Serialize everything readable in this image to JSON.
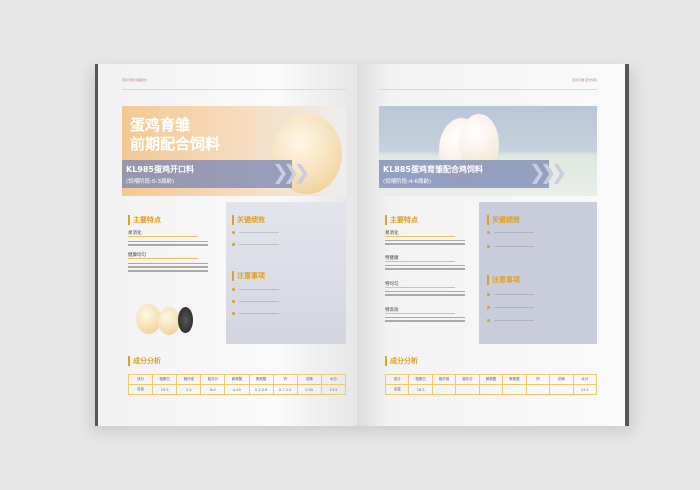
{
  "left": {
    "header": "蛋鸡育雏 前期配合",
    "title_line1": "蛋鸡育雏",
    "title_line2": "前期配合饲料",
    "product": "KL985蛋鸡开口料",
    "stage": "(饲喂阶段:0-3周龄)",
    "features_heading": "主要特点",
    "features": [
      {
        "label": "易消化"
      },
      {
        "label": "健康均匀"
      }
    ],
    "performance_heading": "关键绩效",
    "notes_heading": "注意事项",
    "analysis_heading": "成分分析",
    "table": {
      "headers": [
        "成分",
        "粗蛋白",
        "粗纤维",
        "粗灰分",
        "赖氨酸",
        "蛋氨酸",
        "钙",
        "总磷",
        "水分"
      ],
      "row": [
        "含量",
        "19.5",
        "5.5",
        "8.0",
        "0.45",
        "0.3-0.8",
        "0.7-1.2",
        "0.50",
        "13.5"
      ]
    }
  },
  "right": {
    "header": "蛋鸡育雏 配合饲料",
    "product": "KL885蛋鸡育雏配合鸡饲料",
    "stage": "(饲喂阶段:4-6周龄)",
    "features_heading": "主要特点",
    "features": [
      {
        "label": "易消化"
      },
      {
        "label": "特健康"
      },
      {
        "label": "特均匀"
      },
      {
        "label": "特高效"
      }
    ],
    "performance_heading": "关键绩效",
    "notes_heading": "注意事项",
    "analysis_heading": "成分分析",
    "table": {
      "headers": [
        "成分",
        "粗蛋白",
        "粗纤维",
        "粗灰分",
        "赖氨酸",
        "蛋氨酸",
        "钙",
        "总磷",
        "水分"
      ],
      "row": [
        "含量",
        "18.5",
        "",
        "",
        "",
        "",
        "",
        "",
        "13.5"
      ]
    }
  },
  "colors": {
    "accent": "#e0a020",
    "band": "#7887b4"
  }
}
